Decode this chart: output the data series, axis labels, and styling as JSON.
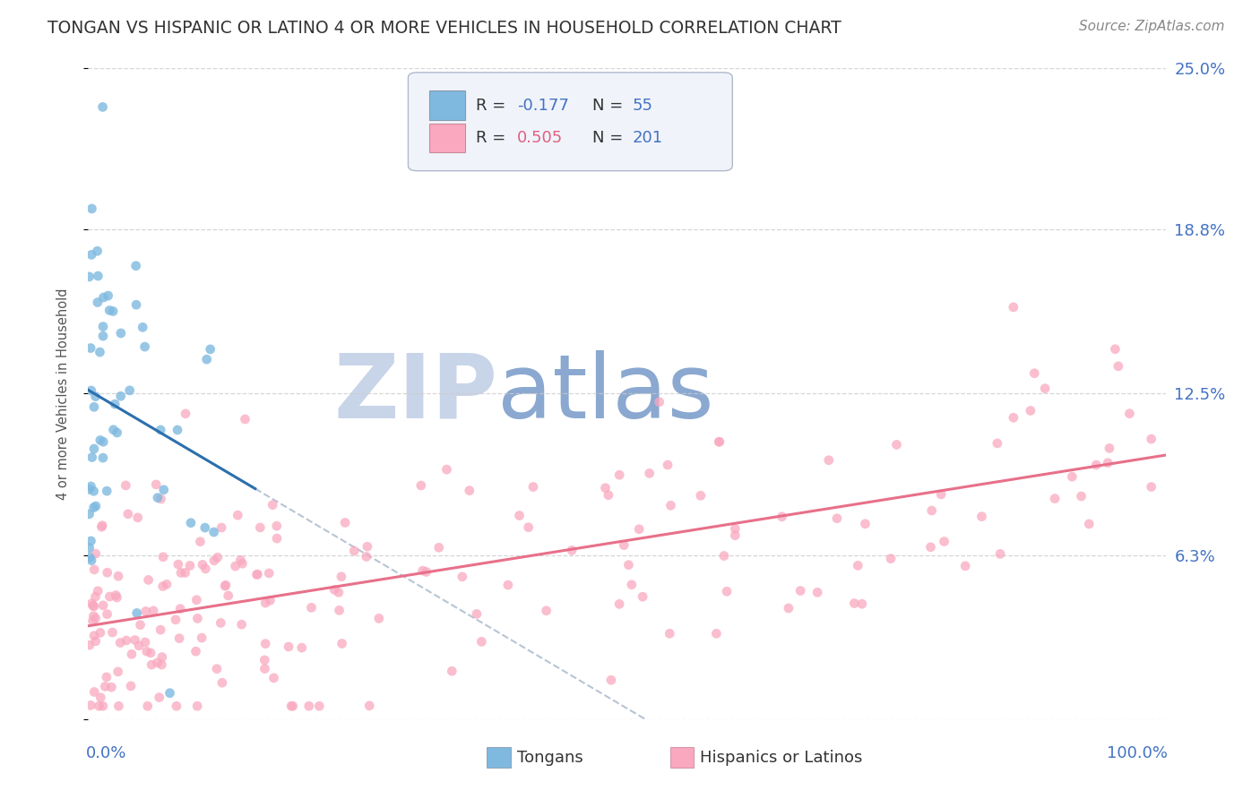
{
  "title": "TONGAN VS HISPANIC OR LATINO 4 OR MORE VEHICLES IN HOUSEHOLD CORRELATION CHART",
  "source": "Source: ZipAtlas.com",
  "ylabel": "4 or more Vehicles in Household",
  "x_min": 0.0,
  "x_max": 1.0,
  "y_min": 0.0,
  "y_max": 0.25,
  "y_ticks": [
    0.0,
    0.063,
    0.125,
    0.188,
    0.25
  ],
  "y_tick_labels": [
    "",
    "6.3%",
    "12.5%",
    "18.8%",
    "25.0%"
  ],
  "legend_labels": [
    "Tongans",
    "Hispanics or Latinos"
  ],
  "tongan_R": -0.177,
  "tongan_N": 55,
  "hispanic_R": 0.505,
  "hispanic_N": 201,
  "blue_color": "#7fb9e0",
  "pink_color": "#f9a8c0",
  "blue_line_color": "#2c6fad",
  "pink_line_color": "#e8708a",
  "title_color": "#333333",
  "source_color": "#888888",
  "axis_label_color": "#4472C4",
  "watermark_color_zip": "#c8d4e8",
  "watermark_color_atlas": "#8aa8d0",
  "background_color": "#ffffff",
  "grid_color": "#cccccc",
  "legend_R_color_blue": "#4472C4",
  "legend_R_color_pink": "#E06080",
  "legend_N_color": "#4472C4",
  "legend_box_color": "#f0f4fa",
  "legend_border_color": "#b0b8cc"
}
